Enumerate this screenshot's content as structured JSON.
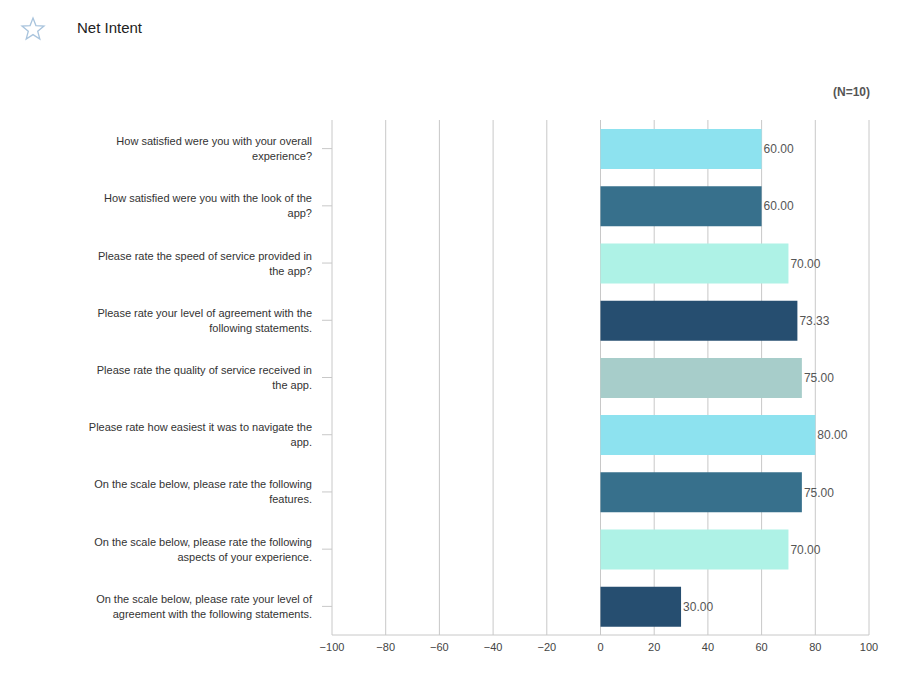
{
  "chart_data": {
    "type": "bar",
    "title": "Net Intent",
    "annotations": [
      "(N=10)"
    ],
    "orientation": "horizontal",
    "categories": [
      "How satisfied were you with your overall experience?",
      "How satisfied were you with the look of the app?",
      "Please rate the speed of service provided in the app?",
      "Please rate your level of agreement with the following statements.",
      "Please rate the quality of service received in the app.",
      "Please rate how easiest it was to navigate the app.",
      "On the scale below, please rate the following features.",
      "On the scale below, please rate the following aspects of your experience.",
      "On the scale below, please rate your level of agreement with the following statements."
    ],
    "values": [
      60,
      60,
      70,
      73.33,
      75,
      80,
      75,
      70,
      30
    ],
    "value_labels": [
      "60.00",
      "60.00",
      "70.00",
      "73.33",
      "75.00",
      "80.00",
      "75.00",
      "70.00",
      "30.00"
    ],
    "data_labels": true,
    "colors": [
      "#8de2ef",
      "#37708c",
      "#aef2e6",
      "#264e70",
      "#a7cdca",
      "#8de2ef",
      "#37708c",
      "#aef2e6",
      "#264e70"
    ],
    "xlim": [
      -100,
      100
    ],
    "xticks": [
      {
        "value": -100,
        "label": "−100"
      },
      {
        "value": -80,
        "label": "−80"
      },
      {
        "value": -60,
        "label": "−60"
      },
      {
        "value": -40,
        "label": "−40"
      },
      {
        "value": -20,
        "label": "−20"
      },
      0,
      20,
      40,
      60,
      80,
      100
    ],
    "grid": true
  }
}
